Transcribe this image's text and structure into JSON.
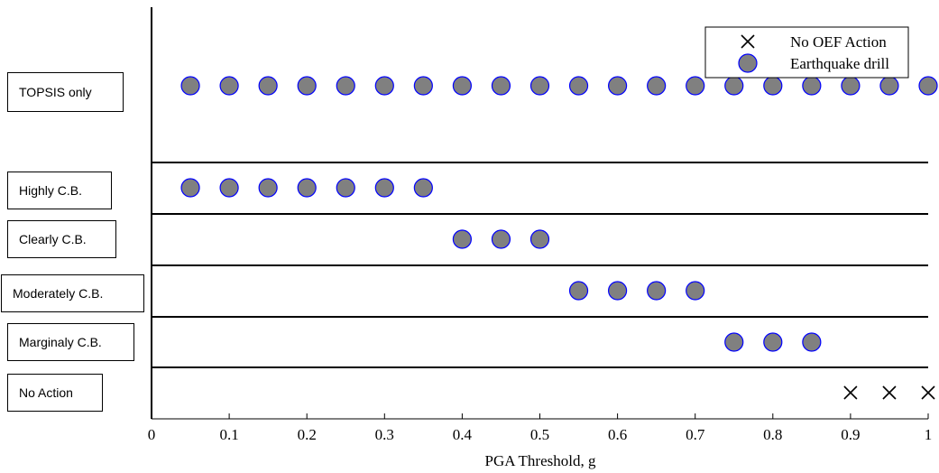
{
  "chart_data": {
    "type": "scatter",
    "xlabel": "PGA Threshold, g",
    "xlim": [
      0,
      1
    ],
    "x_ticks": [
      "0",
      "0.1",
      "0.2",
      "0.3",
      "0.4",
      "0.5",
      "0.6",
      "0.7",
      "0.8",
      "0.9",
      "1"
    ],
    "rows": [
      {
        "label": "TOPSIS only",
        "drill": [
          0.05,
          0.1,
          0.15,
          0.2,
          0.25,
          0.3,
          0.35,
          0.4,
          0.45,
          0.5,
          0.55,
          0.6,
          0.65,
          0.7,
          0.75,
          0.8,
          0.85,
          0.9,
          0.95,
          1.0
        ],
        "no_action": []
      },
      {
        "label": "Highly C.B.",
        "drill": [
          0.05,
          0.1,
          0.15,
          0.2,
          0.25,
          0.3,
          0.35
        ],
        "no_action": []
      },
      {
        "label": "Clearly C.B.",
        "drill": [
          0.4,
          0.45,
          0.5
        ],
        "no_action": []
      },
      {
        "label": "Moderately C.B.",
        "drill": [
          0.55,
          0.6,
          0.65,
          0.7
        ],
        "no_action": []
      },
      {
        "label": "Marginaly C.B.",
        "drill": [
          0.75,
          0.8,
          0.85
        ],
        "no_action": []
      },
      {
        "label": "No Action",
        "drill": [],
        "no_action": [
          0.9,
          0.95,
          1.0
        ]
      }
    ],
    "legend": {
      "position": "top-right",
      "entries": [
        {
          "name": "No OEF Action",
          "marker": "cross"
        },
        {
          "name": "Earthquake drill",
          "marker": "circle"
        }
      ]
    },
    "colors": {
      "marker_fill": "#808080",
      "marker_edge": "#0000ff",
      "line": "#000000"
    }
  }
}
